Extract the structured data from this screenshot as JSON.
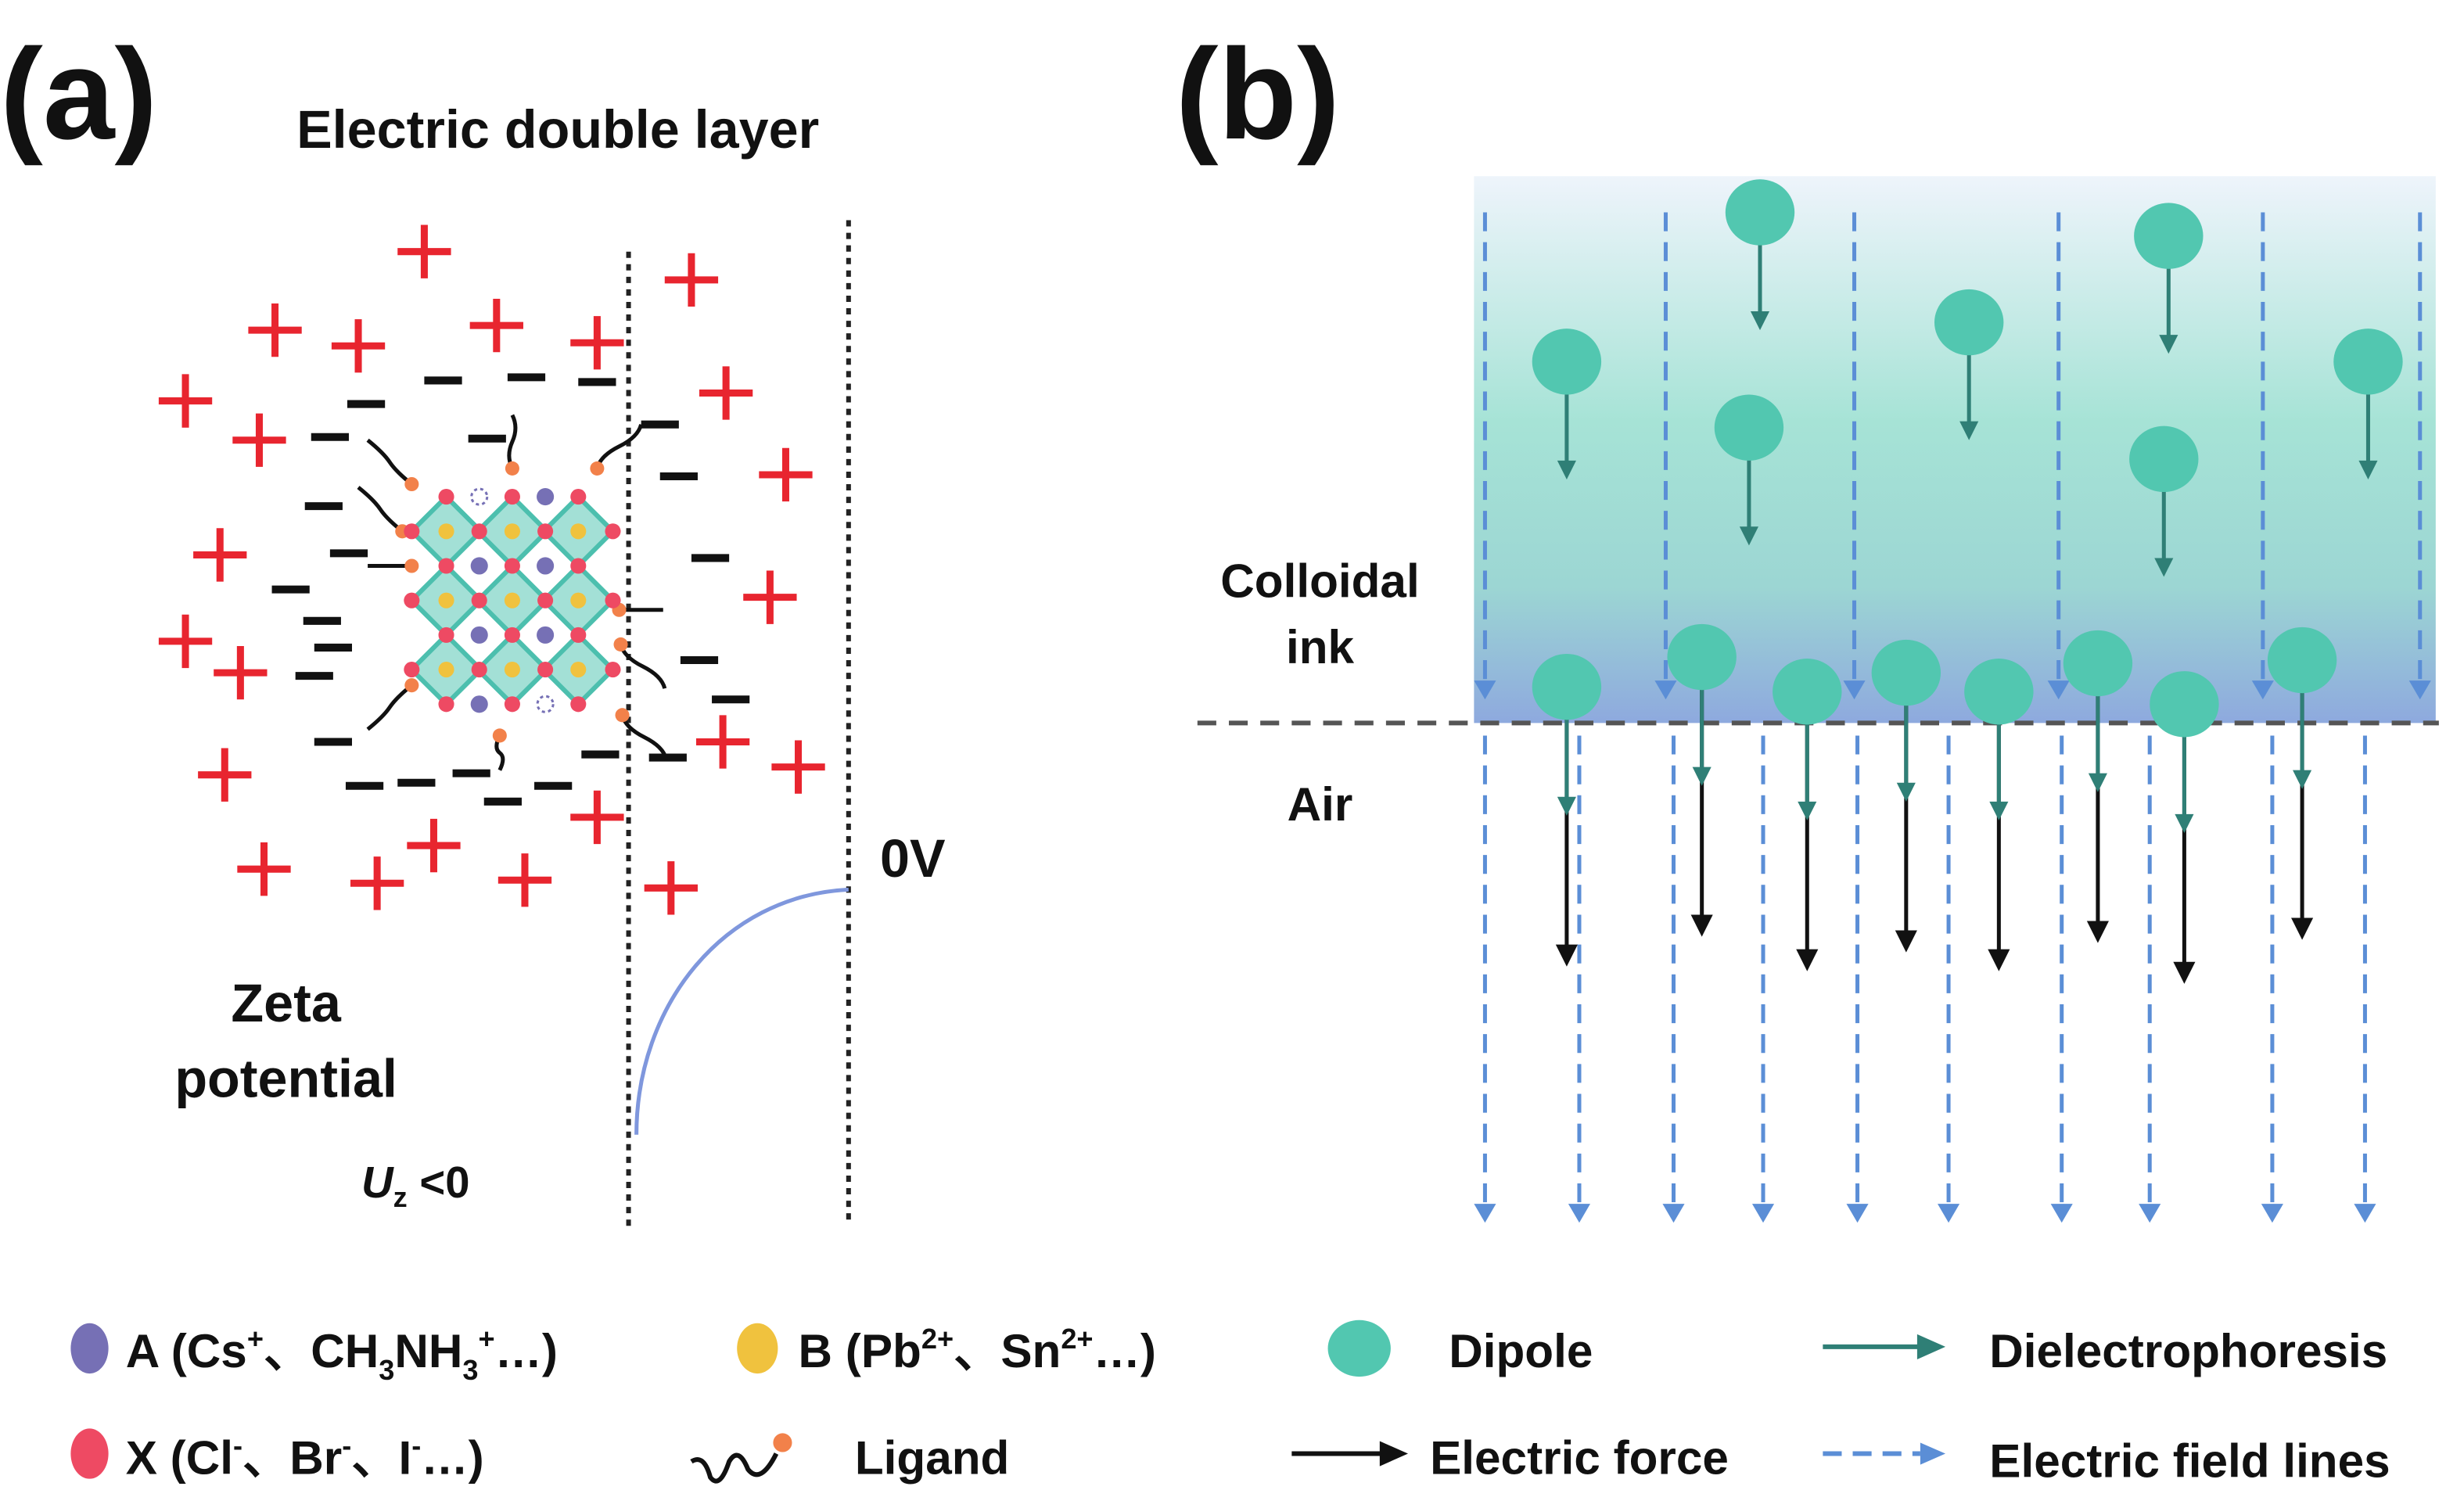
{
  "panel_a": {
    "label": "(a)",
    "title": "Electric double layer",
    "zeta_line1": "Zeta",
    "zeta_line2": "potential",
    "uz_symbol": "U",
    "uz_sub": "z",
    "uz_rest": " <0",
    "zero_v": "0V"
  },
  "panel_b": {
    "label": "(b)",
    "ink_line1": "Colloidal",
    "ink_line2": "ink",
    "air": "Air"
  },
  "legend": {
    "a": {
      "p1": "A (Cs",
      "s1": "+",
      "p2": "、CH",
      "sub1": "3",
      "p3": "NH",
      "sub2": "3",
      "s2": "+",
      "p4": "…)"
    },
    "b": {
      "p1": "B (Pb",
      "s1": "2+",
      "p2": "、Sn",
      "s2": "2+",
      "p3": "…)"
    },
    "x": {
      "p1": "X (Cl",
      "s1": "-",
      "p2": "、Br",
      "s2": "-",
      "p3": "、I",
      "s3": "-",
      "p4": "…)"
    },
    "ligand": "Ligand",
    "dipole": "Dipole",
    "dielectrophoresis": "Dielectrophoresis",
    "electric_force": "Electric force",
    "field_lines": "Electric field lines"
  },
  "colors": {
    "cation_plus": "#e8252f",
    "A_site": "#7670b5",
    "B_site": "#f0c23e",
    "X_site": "#ee4a63",
    "ligand_head": "#f2814a",
    "octahedron_fill": "#a3e0d6",
    "octahedron_edge": "#4cbfae",
    "dipole": "#52c7b0",
    "dielectrophoresis_arrow": "#2f7f76",
    "field_line": "#5b8ed6",
    "zeta_curve": "#7f97dd"
  }
}
